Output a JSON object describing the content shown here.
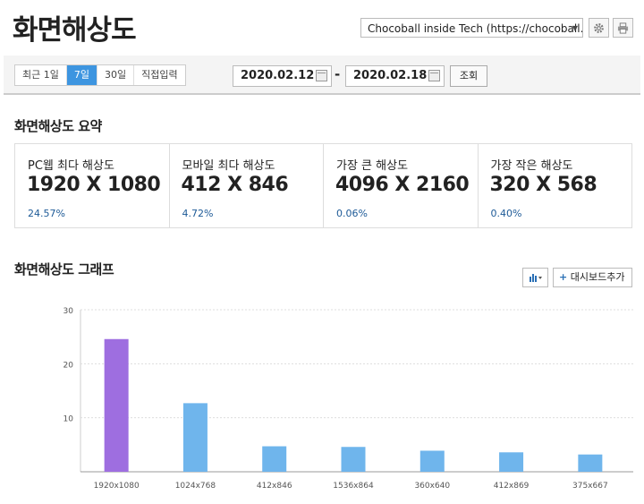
{
  "header": {
    "title": "화면해상도",
    "site_select": "Chocoball inside Tech (https://chocoball.t...",
    "settings_icon": "gear-icon",
    "print_icon": "print-icon"
  },
  "filters": {
    "ranges": [
      "최근 1일",
      "7일",
      "30일",
      "직접입력"
    ],
    "active_range": "7일",
    "start_date": "2020.02.12",
    "separator": "-",
    "end_date": "2020.02.18",
    "search_label": "조회"
  },
  "summary": {
    "title": "화면해상도 요약",
    "cards": [
      {
        "label": "PC웹 최다 해상도",
        "value": "1920 X 1080",
        "percent": "24.57%"
      },
      {
        "label": "모바일 최다 해상도",
        "value": "412 X 846",
        "percent": "4.72%"
      },
      {
        "label": "가장 큰 해상도",
        "value": "4096 X 2160",
        "percent": "0.06%"
      },
      {
        "label": "가장 작은 해상도",
        "value": "320 X 568",
        "percent": "0.40%"
      }
    ]
  },
  "graph": {
    "title": "화면해상도 그래프",
    "chart_type_icon": "bar-chart-icon",
    "add_dashboard_label": "대시보드추가"
  },
  "chart_data": {
    "type": "bar",
    "categories": [
      "1920x1080",
      "1024x768",
      "412x846",
      "1536x864",
      "360x640",
      "412x869",
      "375x667"
    ],
    "values": [
      24.57,
      12.7,
      4.72,
      4.6,
      3.9,
      3.6,
      3.2
    ],
    "yticks": [
      10,
      20,
      30
    ],
    "ylim": [
      0,
      30
    ],
    "grid": true,
    "colors": {
      "highlight": "#9e6ee0",
      "default": "#6fb5ec"
    }
  }
}
